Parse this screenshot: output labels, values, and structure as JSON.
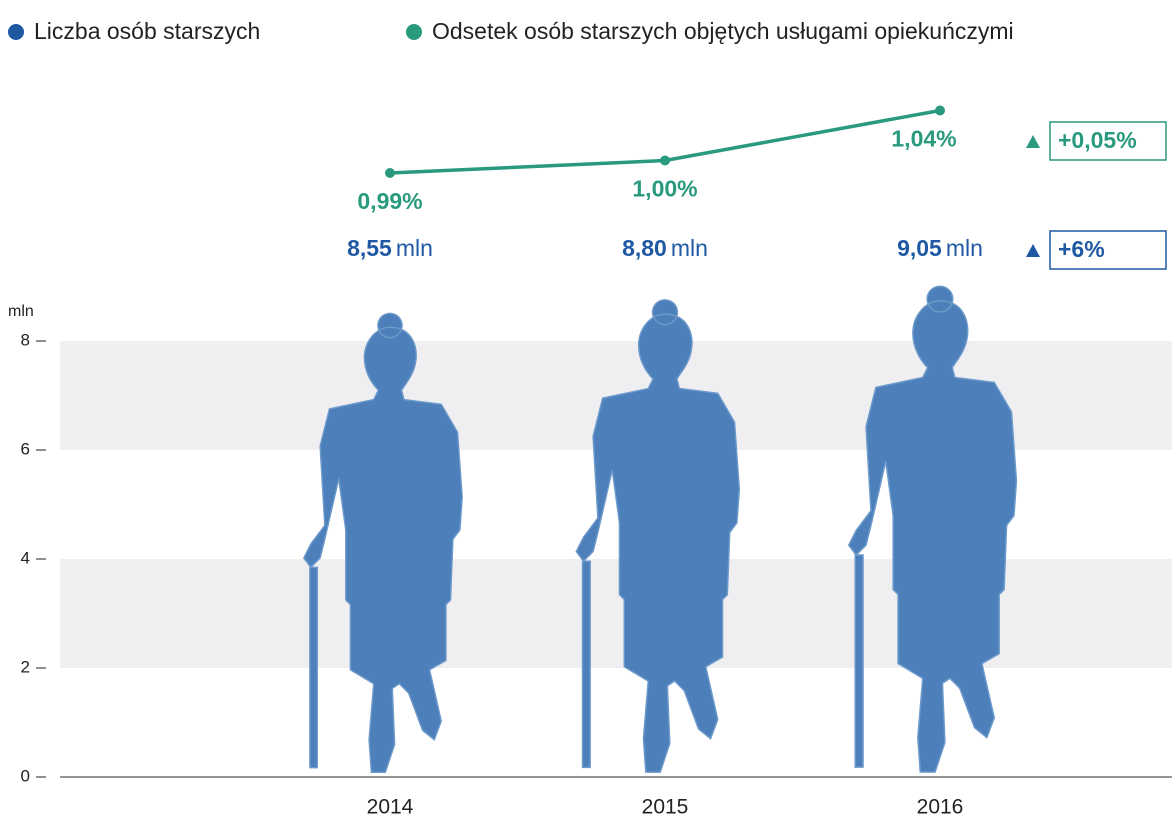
{
  "chart_data": {
    "type": "pictogram",
    "categories": [
      "2014",
      "2015",
      "2016"
    ],
    "y_label": "mln",
    "ylim": [
      0,
      8
    ],
    "yticks": [
      0,
      2,
      4,
      6,
      8
    ],
    "y2lim": [
      0.9,
      1.1
    ],
    "bands": true,
    "series": [
      {
        "name": "Liczba osób starszych",
        "color": "#1f59a3",
        "fill": "#4d80ba",
        "values": [
          8.55,
          8.8,
          9.05
        ],
        "value_labels": [
          "8,55",
          "8,80",
          "9,05"
        ],
        "unit": "mln",
        "change_label": "+6%"
      },
      {
        "name": "Odsetek osób starszych objętych usługami opiekuńczymi",
        "type": "line",
        "axis": "y2",
        "color": "#2a9a7e",
        "values": [
          0.99,
          1.0,
          1.04
        ],
        "value_labels": [
          "0,99%",
          "1,00%",
          "1,04%"
        ],
        "change_label": "+0,05%"
      }
    ]
  }
}
